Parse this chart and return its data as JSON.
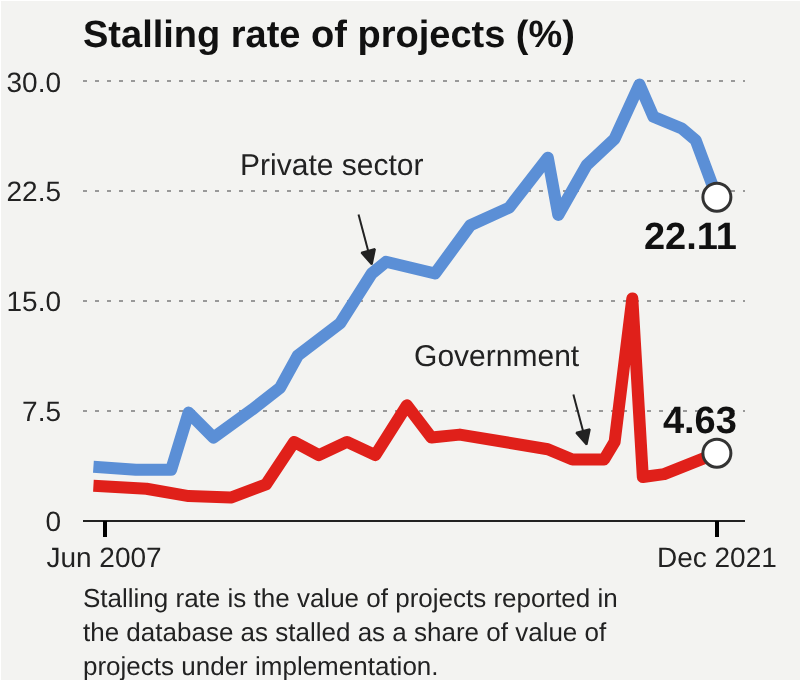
{
  "chart_data": {
    "type": "line",
    "title": "Stalling rate of projects (%)",
    "xlim": [
      "2006-12",
      "2022-08"
    ],
    "xticks": [
      {
        "value": "2007-06",
        "label": "Jun 2007"
      },
      {
        "value": "2021-12",
        "label": "Dec 2021"
      }
    ],
    "ylim": [
      0,
      31
    ],
    "yticks": [
      {
        "value": 0,
        "label": "0"
      },
      {
        "value": 7.5,
        "label": "7.5"
      },
      {
        "value": 15,
        "label": "15.0"
      },
      {
        "value": 22.5,
        "label": "22.5"
      },
      {
        "value": 30,
        "label": "30.0"
      }
    ],
    "grid": "y",
    "marker": "none",
    "line_style": "solid",
    "series": [
      {
        "color": "#5b8fd6",
        "x": [
          "2007-03",
          "2008-03",
          "2009-01",
          "2009-06",
          "2010-01",
          "2010-12",
          "2011-08",
          "2012-01",
          "2013-01",
          "2013-10",
          "2014-02",
          "2015-04",
          "2016-02",
          "2017-01",
          "2017-12",
          "2018-03",
          "2018-11",
          "2019-07",
          "2020-02",
          "2020-06",
          "2021-02",
          "2021-06",
          "2021-12"
        ],
        "values": [
          3.7,
          3.5,
          3.5,
          7.4,
          5.7,
          7.6,
          9.1,
          11.3,
          13.5,
          16.9,
          17.7,
          16.9,
          20.2,
          21.4,
          24.8,
          20.9,
          24.3,
          26.1,
          29.8,
          27.6,
          26.8,
          26.0,
          22.11
        ],
        "value_labels": [
          null,
          null,
          null,
          null,
          null,
          null,
          null,
          null,
          null,
          null,
          null,
          null,
          null,
          null,
          null,
          null,
          null,
          null,
          null,
          null,
          null,
          null,
          "22.11"
        ]
      },
      {
        "color": "#e0201a",
        "x": [
          "2007-03",
          "2008-06",
          "2009-06",
          "2010-06",
          "2011-04",
          "2011-12",
          "2012-07",
          "2013-03",
          "2013-11",
          "2014-08",
          "2015-03",
          "2015-11",
          "2017-12",
          "2018-07",
          "2019-04",
          "2019-07",
          "2019-12",
          "2020-03",
          "2020-09",
          "2021-12"
        ],
        "values": [
          2.4,
          2.2,
          1.7,
          1.6,
          2.5,
          5.4,
          4.5,
          5.4,
          4.5,
          7.9,
          5.7,
          5.9,
          4.9,
          4.2,
          4.2,
          5.4,
          15.2,
          3.0,
          3.2,
          4.63
        ],
        "value_labels": [
          null,
          null,
          null,
          null,
          null,
          null,
          null,
          null,
          null,
          null,
          null,
          null,
          null,
          null,
          null,
          null,
          null,
          null,
          null,
          "4.63"
        ]
      }
    ],
    "annotations": [
      {
        "text": "Private sector",
        "x": "2013-10",
        "y": 16.9
      },
      {
        "text": "Government",
        "x": "2018-11",
        "y": 4.6
      },
      "Stalling rate is the value of projects reported in the database as stalled as a share of value of projects under implementation."
    ]
  }
}
